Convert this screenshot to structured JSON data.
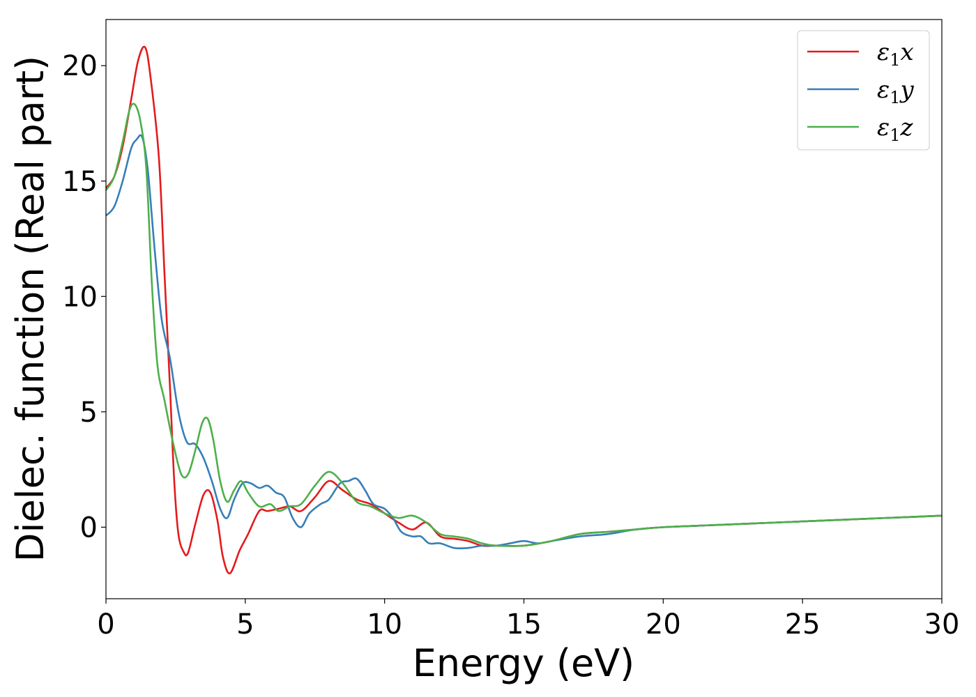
{
  "chart_data": {
    "type": "line",
    "xlabel": "Energy (eV)",
    "ylabel": "Dielec. function (Real part)",
    "xlim": [
      0,
      30
    ],
    "ylim": [
      -3.1,
      22
    ],
    "xticks": [
      0,
      5,
      10,
      15,
      20,
      25,
      30
    ],
    "yticks": [
      0,
      5,
      10,
      15,
      20
    ],
    "grid": false,
    "legend_position": "top-right",
    "series": [
      {
        "name": "ε1x",
        "legend": {
          "base": "ε",
          "sub": "1",
          "suffix": "x"
        },
        "color": "#e41a1c",
        "x": [
          0,
          0.3,
          0.6,
          0.9,
          1.15,
          1.4,
          1.6,
          1.9,
          2.1,
          2.3,
          2.45,
          2.6,
          2.8,
          2.95,
          3.2,
          3.5,
          3.75,
          4.0,
          4.2,
          4.45,
          4.8,
          5.1,
          5.5,
          5.8,
          6.2,
          6.6,
          7.0,
          7.5,
          8.0,
          8.5,
          9.0,
          9.5,
          10.0,
          10.5,
          11.0,
          11.5,
          12.0,
          12.5,
          13.0,
          13.5,
          14.0,
          15.0,
          16.0,
          17.0,
          18.0,
          19.0,
          20.0,
          22.0,
          24.0,
          26.0,
          28.0,
          30.0
        ],
        "y": [
          14.7,
          15.2,
          16.5,
          18.5,
          20.2,
          20.8,
          19.5,
          16.0,
          11.0,
          6.0,
          2.0,
          -0.3,
          -1.1,
          -1.1,
          0.1,
          1.4,
          1.5,
          0.3,
          -1.3,
          -2.0,
          -1.0,
          -0.3,
          0.7,
          0.7,
          0.8,
          0.9,
          0.7,
          1.3,
          2.0,
          1.6,
          1.2,
          1.0,
          0.6,
          0.2,
          -0.1,
          0.2,
          -0.4,
          -0.5,
          -0.6,
          -0.8,
          -0.8,
          -0.8,
          -0.6,
          -0.3,
          -0.2,
          -0.1,
          0.0,
          0.1,
          0.2,
          0.3,
          0.4,
          0.5
        ]
      },
      {
        "name": "ε1y",
        "legend": {
          "base": "ε",
          "sub": "1",
          "suffix": "y"
        },
        "color": "#377eb8",
        "x": [
          0,
          0.3,
          0.6,
          0.9,
          1.1,
          1.3,
          1.5,
          1.75,
          2.0,
          2.3,
          2.6,
          2.9,
          3.2,
          3.5,
          3.8,
          4.1,
          4.35,
          4.6,
          4.9,
          5.2,
          5.5,
          5.8,
          6.1,
          6.4,
          6.7,
          7.0,
          7.3,
          7.7,
          8.0,
          8.4,
          8.7,
          9.0,
          9.3,
          9.6,
          10.0,
          10.3,
          10.6,
          11.0,
          11.3,
          11.6,
          12.0,
          12.5,
          13.0,
          13.5,
          14.0,
          14.5,
          15.0,
          15.5,
          16.0,
          17.0,
          18.0,
          19.0,
          20.0,
          22.0,
          24.0,
          26.0,
          28.0,
          30.0
        ],
        "y": [
          13.5,
          13.9,
          15.0,
          16.4,
          16.8,
          16.9,
          15.5,
          12.0,
          9.0,
          7.3,
          5.0,
          3.7,
          3.6,
          3.0,
          2.0,
          0.8,
          0.4,
          1.2,
          1.9,
          1.9,
          1.7,
          1.8,
          1.5,
          1.3,
          0.4,
          0.0,
          0.6,
          1.0,
          1.2,
          1.9,
          2.0,
          2.1,
          1.6,
          1.0,
          0.8,
          0.4,
          -0.2,
          -0.4,
          -0.4,
          -0.7,
          -0.7,
          -0.9,
          -0.9,
          -0.8,
          -0.8,
          -0.7,
          -0.6,
          -0.7,
          -0.6,
          -0.4,
          -0.3,
          -0.1,
          0.0,
          0.1,
          0.2,
          0.3,
          0.4,
          0.5
        ]
      },
      {
        "name": "ε1z",
        "legend": {
          "base": "ε",
          "sub": "1",
          "suffix": "z"
        },
        "color": "#4daf4a",
        "x": [
          0,
          0.3,
          0.6,
          0.85,
          1.05,
          1.25,
          1.45,
          1.65,
          1.85,
          2.1,
          2.4,
          2.7,
          2.95,
          3.2,
          3.45,
          3.65,
          3.85,
          4.1,
          4.35,
          4.6,
          4.85,
          5.1,
          5.5,
          5.9,
          6.2,
          6.6,
          7.0,
          7.5,
          8.0,
          8.5,
          9.0,
          9.5,
          10.0,
          10.5,
          11.0,
          11.5,
          12.0,
          12.5,
          13.0,
          13.5,
          14.0,
          15.0,
          16.0,
          17.0,
          18.0,
          19.0,
          20.0,
          22.0,
          24.0,
          26.0,
          28.0,
          30.0
        ],
        "y": [
          14.6,
          15.2,
          16.7,
          18.1,
          18.3,
          17.5,
          15.5,
          10.5,
          7.0,
          5.5,
          3.7,
          2.3,
          2.3,
          3.3,
          4.5,
          4.7,
          3.8,
          2.0,
          1.1,
          1.6,
          2.0,
          1.5,
          0.9,
          1.0,
          0.7,
          0.9,
          1.0,
          1.8,
          2.4,
          1.9,
          1.1,
          0.9,
          0.6,
          0.4,
          0.5,
          0.2,
          -0.3,
          -0.4,
          -0.5,
          -0.7,
          -0.8,
          -0.8,
          -0.6,
          -0.3,
          -0.2,
          -0.1,
          0.0,
          0.1,
          0.2,
          0.3,
          0.4,
          0.5
        ]
      }
    ]
  }
}
